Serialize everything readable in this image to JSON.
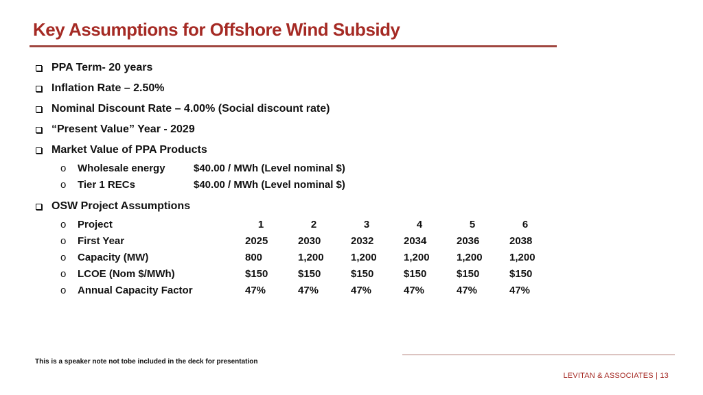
{
  "slide": {
    "title": "Key Assumptions for Offshore Wind Subsidy",
    "bullets": [
      "PPA Term- 20 years",
      "Inflation Rate – 2.50%",
      "Nominal Discount Rate – 4.00%  (Social discount rate)",
      "“Present Value” Year - 2029",
      "Market Value of PPA Products"
    ],
    "market_items": [
      {
        "label": "Wholesale energy",
        "value": "$40.00 / MWh (Level nominal $)"
      },
      {
        "label": "Tier 1 RECs",
        "value": "$40.00 / MWh (Level nominal $)"
      }
    ],
    "osw_heading": "OSW Project Assumptions",
    "osw_rows": [
      {
        "label": "Project",
        "values": [
          "1",
          "2",
          "3",
          "4",
          "5",
          "6"
        ]
      },
      {
        "label": "First Year",
        "values": [
          "2025",
          "2030",
          "2032",
          "2034",
          "2036",
          "2038"
        ]
      },
      {
        "label": "Capacity (MW)",
        "values": [
          "800",
          "1,200",
          "1,200",
          "1,200",
          "1,200",
          "1,200"
        ]
      },
      {
        "label": "LCOE (Nom $/MWh)",
        "values": [
          "$150",
          "$150",
          "$150",
          "$150",
          "$150",
          "$150"
        ]
      },
      {
        "label": "Annual Capacity Factor",
        "values": [
          "47%",
          "47%",
          "47%",
          "47%",
          "47%",
          "47%"
        ]
      }
    ],
    "sub_marker": "o",
    "speaker_note": "This is a speaker note not tobe included in the deck for presentation",
    "footer": "LEVITAN & ASSOCIATES | 13"
  },
  "colors": {
    "accent": "#a52a24",
    "rule": "#a0463f"
  },
  "icons": {
    "bullet": "checkbox-square-icon",
    "sub_bullet": "circle-bullet-icon"
  }
}
